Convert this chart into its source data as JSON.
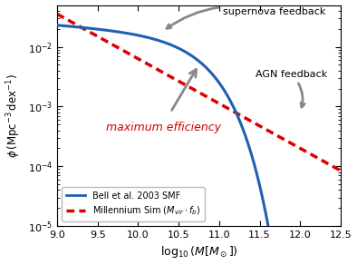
{
  "xlim": [
    9.0,
    12.5
  ],
  "ylim": [
    1e-05,
    0.05
  ],
  "xlabel": "$\\log_{10}(M[M_\\odot])$",
  "ylabel": "$\\phi\\,(\\mathrm{Mpc}^{-3}\\,\\mathrm{dex}^{-1})$",
  "bell_color": "#2060b0",
  "millennium_color": "#dd0000",
  "arrow_color": "#888888",
  "annotation_sn": "supernova feedback",
  "annotation_agn": "AGN feedback",
  "annotation_me": "maximum efficiency",
  "annotation_me_color": "#cc0000",
  "legend_blue": "Bell et al. 2003 SMF",
  "bell_params": {
    "log_mstar": 10.75,
    "phi_star": 0.0068,
    "alpha": -1.1
  },
  "millennium_slope": -0.75,
  "millennium_intercept": 5.3
}
